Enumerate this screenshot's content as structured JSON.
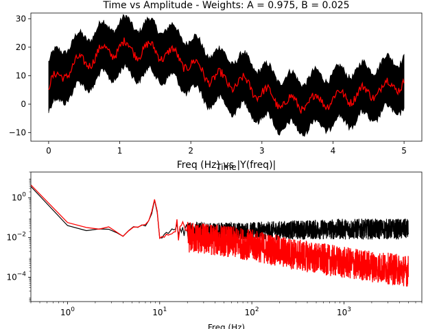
{
  "chart_data": [
    {
      "type": "line",
      "title": "Time vs Amplitude - Weights: A = 0.975, B = 0.025",
      "xlabel": "Time",
      "ylabel": "",
      "xlim": [
        -0.25,
        5.25
      ],
      "ylim": [
        -13,
        32
      ],
      "xticks": [
        0,
        1,
        2,
        3,
        4,
        5
      ],
      "yticks": [
        -10,
        0,
        10,
        20,
        30
      ],
      "grid": false,
      "series": [
        {
          "color": "#000000",
          "style": "band",
          "x": [
            0.0,
            0.25,
            0.5,
            0.75,
            1.0,
            1.25,
            1.5,
            1.75,
            2.0,
            2.25,
            2.5,
            2.75,
            3.0,
            3.25,
            3.5,
            3.75,
            4.0,
            4.25,
            4.5,
            4.75,
            5.0
          ],
          "values": [
            6,
            12,
            15,
            18,
            20,
            19,
            19,
            17,
            14,
            10,
            8,
            7,
            4,
            1,
            0,
            1,
            2,
            3,
            4,
            6,
            8
          ],
          "band_halfwidth": 9
        },
        {
          "color": "#ff0000",
          "style": "line",
          "x": [
            0.0,
            0.25,
            0.5,
            0.75,
            1.0,
            1.25,
            1.5,
            1.75,
            2.0,
            2.25,
            2.5,
            2.75,
            3.0,
            3.25,
            3.5,
            3.75,
            4.0,
            4.25,
            4.5,
            4.75,
            5.0
          ],
          "values": [
            6,
            12,
            15,
            18,
            20,
            19,
            19,
            17,
            14,
            10,
            8,
            7,
            4,
            1,
            0,
            1,
            2,
            3,
            4,
            6,
            8
          ]
        }
      ]
    },
    {
      "type": "line",
      "title": "Freq (Hz) vs |Y(freq)|",
      "xlabel": "Freq (Hz)",
      "ylabel": "",
      "xscale": "log",
      "yscale": "log",
      "xlim": [
        0.4,
        7000
      ],
      "ylim": [
        6e-06,
        20
      ],
      "xticks": [
        "10^0",
        "10^1",
        "10^2",
        "10^3"
      ],
      "yticks": [
        "10^-4",
        "10^-2",
        "10^0"
      ],
      "grid": false,
      "series": [
        {
          "color": "#000000",
          "x": [
            0.4,
            0.6,
            1.2,
            1.8,
            2.4,
            3.0,
            4.0,
            5.0,
            6.0,
            7.0,
            8.0,
            9.0,
            10.0,
            15.0,
            20.0,
            50.0,
            100.0,
            300.0,
            1000.0,
            3000.0,
            5000.0
          ],
          "values": [
            4.5,
            4.5,
            0.01,
            0.035,
            0.02,
            0.03,
            0.012,
            0.03,
            0.035,
            0.04,
            0.1,
            1.5,
            0.01,
            0.03,
            0.02,
            0.02,
            0.02,
            0.025,
            0.03,
            0.03,
            0.03
          ],
          "noise_floor": [
            0.005,
            0.005,
            0.008,
            0.008,
            0.008,
            0.008,
            0.008,
            0.008,
            0.008,
            0.008,
            0.008,
            0.008,
            0.008,
            0.008,
            0.008,
            0.008,
            0.008,
            0.008,
            0.008,
            0.008,
            0.008
          ]
        },
        {
          "color": "#ff0000",
          "x": [
            0.4,
            0.6,
            1.2,
            1.8,
            2.4,
            3.0,
            4.0,
            5.0,
            6.0,
            7.0,
            8.0,
            9.0,
            10.0,
            15.0,
            20.0,
            50.0,
            100.0,
            300.0,
            1000.0,
            3000.0,
            5000.0
          ],
          "values": [
            4.5,
            4.5,
            0.012,
            0.04,
            0.025,
            0.035,
            0.012,
            0.03,
            0.035,
            0.04,
            0.1,
            1.5,
            0.01,
            0.02,
            0.015,
            0.01,
            0.006,
            0.002,
            0.0008,
            0.0004,
            0.0003
          ]
        }
      ]
    }
  ]
}
